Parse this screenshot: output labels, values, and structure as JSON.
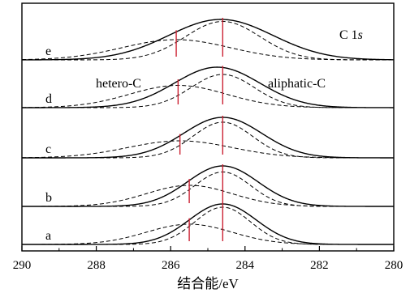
{
  "chart_data": {
    "type": "line",
    "title": "",
    "xlabel": "结合能/eV",
    "ylabel": "",
    "xlim": [
      290,
      280
    ],
    "x_reversed": true,
    "xticks": [
      290,
      288,
      286,
      284,
      282,
      280
    ],
    "grid": false,
    "legend": "none",
    "annotations": {
      "element": "C 1",
      "element_suffix": "s",
      "hetero": "hetero-C",
      "aliphatic": "aliphatic-C"
    },
    "colors": {
      "curve": "#000000",
      "marker": "#cc2233",
      "frame": "#000000"
    },
    "spectra": [
      {
        "name": "a",
        "envelope": {
          "center": 284.6,
          "height": 1.0,
          "width": 0.9
        },
        "components": [
          {
            "label": "aliphatic-C",
            "center": 284.6,
            "height": 0.92,
            "width": 0.75
          },
          {
            "label": "hetero-C",
            "center": 285.5,
            "height": 0.5,
            "width": 1.15
          }
        ],
        "markers": [
          285.5,
          284.6
        ]
      },
      {
        "name": "b",
        "envelope": {
          "center": 284.6,
          "height": 1.0,
          "width": 0.95
        },
        "components": [
          {
            "label": "aliphatic-C",
            "center": 284.6,
            "height": 0.85,
            "width": 0.75
          },
          {
            "label": "hetero-C",
            "center": 285.5,
            "height": 0.52,
            "width": 1.15
          }
        ],
        "markers": [
          285.5,
          284.6
        ]
      },
      {
        "name": "c",
        "envelope": {
          "center": 284.6,
          "height": 1.0,
          "width": 1.05
        },
        "components": [
          {
            "label": "aliphatic-C",
            "center": 284.6,
            "height": 0.88,
            "width": 0.8
          },
          {
            "label": "hetero-C",
            "center": 285.75,
            "height": 0.42,
            "width": 1.4
          }
        ],
        "markers": [
          285.75,
          284.6
        ]
      },
      {
        "name": "d",
        "envelope": {
          "center": 284.75,
          "height": 1.0,
          "width": 1.15
        },
        "components": [
          {
            "label": "aliphatic-C",
            "center": 284.6,
            "height": 0.82,
            "width": 0.85
          },
          {
            "label": "hetero-C",
            "center": 285.8,
            "height": 0.55,
            "width": 1.3
          }
        ],
        "markers": [
          285.8,
          284.6
        ]
      },
      {
        "name": "e",
        "envelope": {
          "center": 284.65,
          "height": 1.0,
          "width": 1.4
        },
        "components": [
          {
            "label": "aliphatic-C",
            "center": 284.6,
            "height": 0.95,
            "width": 1.0
          },
          {
            "label": "hetero-C",
            "center": 285.85,
            "height": 0.5,
            "width": 1.45
          }
        ],
        "markers": [
          285.85,
          284.6
        ]
      }
    ]
  }
}
